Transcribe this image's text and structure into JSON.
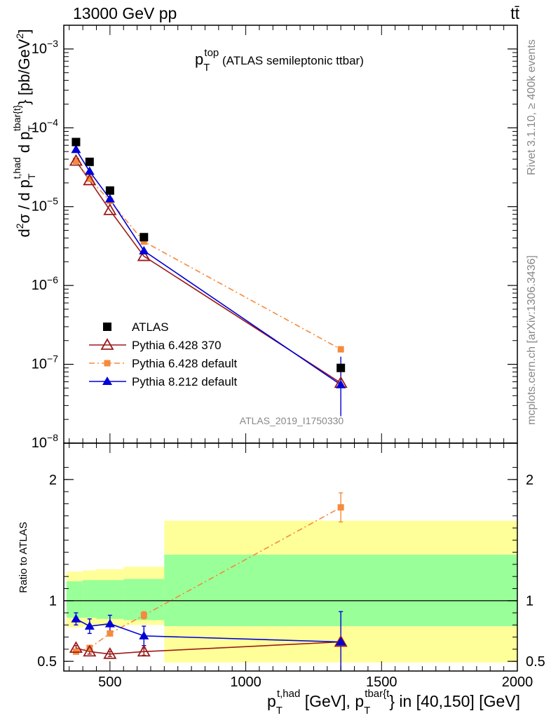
{
  "header": {
    "left": "13000 GeV pp",
    "right": "tt̄"
  },
  "side": {
    "rivet": "Rivet 3.1.10, ≥ 400k events",
    "mcplots": "mcplots.cern.ch [arXiv:1306.3436]"
  },
  "watermark": "ATLAS_2019_I1750330",
  "colors": {
    "data": "#000000",
    "py6_370": "#9b1b1b",
    "py6_default": "#f58a3c",
    "py8_default": "#0000d8",
    "band_inner": "#99ff99",
    "band_outer": "#ffff99"
  },
  "chart_data": [
    {
      "type": "scatter",
      "panel": "main",
      "title": {
        "p": "p",
        "sub": "T",
        "sup": "top",
        "rest": " (ATLAS semileptonic ttbar)"
      },
      "ylabel": {
        "d2": "d",
        "d2sup": "2",
        "sigma": "σ / d p",
        "sub1": "T",
        "sup1": "t,had",
        "mid": " d p",
        "sub2": "T",
        "sup2": "tbar{t}",
        "tail": "} [pb/GeV",
        "tailsup": "2",
        "close": "]"
      },
      "yscale": "log",
      "ylim": [
        1e-08,
        0.002
      ],
      "xlim": [
        330,
        2000
      ],
      "yticks": [
        {
          "v": 1e-08,
          "base": "10",
          "exp": "−8"
        },
        {
          "v": 1e-07,
          "base": "10",
          "exp": "−7"
        },
        {
          "v": 1e-06,
          "base": "10",
          "exp": "−6"
        },
        {
          "v": 1e-05,
          "base": "10",
          "exp": "−5"
        },
        {
          "v": 0.0001,
          "base": "10",
          "exp": "−4"
        },
        {
          "v": 0.001,
          "base": "10",
          "exp": "−3"
        }
      ],
      "legend_position": "lower-left",
      "legend": [
        {
          "key": "atlas",
          "label": "ATLAS"
        },
        {
          "key": "py6_370",
          "label": "Pythia 6.428 370"
        },
        {
          "key": "py6_default",
          "label": "Pythia 6.428 default"
        },
        {
          "key": "py8_default",
          "label": "Pythia 8.212 default"
        }
      ],
      "x": [
        375,
        425,
        500,
        625,
        1350
      ],
      "series": [
        {
          "key": "atlas",
          "name": "ATLAS",
          "values": [
            6.6e-05,
            3.7e-05,
            1.6e-05,
            4.1e-06,
            9e-08
          ]
        },
        {
          "key": "py6_370",
          "name": "Pythia 6.428 370",
          "values": [
            3.8e-05,
            2.15e-05,
            9e-06,
            2.35e-06,
            5.8e-08
          ]
        },
        {
          "key": "py6_default",
          "name": "Pythia 6.428 default",
          "values": [
            3.8e-05,
            2.25e-05,
            1.18e-05,
            3.6e-06,
            1.55e-07
          ]
        },
        {
          "key": "py8_default",
          "name": "Pythia 8.212 default",
          "values": [
            5.3e-05,
            2.8e-05,
            1.25e-05,
            2.75e-06,
            5.5e-08
          ],
          "err_lo": [
            0,
            0,
            0,
            0,
            3.3e-08
          ],
          "err_hi": [
            0,
            0,
            0,
            0,
            7e-08
          ]
        }
      ]
    },
    {
      "type": "scatter",
      "panel": "ratio",
      "ylabel": "Ratio to ATLAS",
      "xlabel": {
        "p": "p",
        "sub": "T",
        "sup": "t,had",
        "mid": " [GeV], p",
        "sub2": "T",
        "sup2": "tbar{t",
        "tail": "} in [40,150] [GeV]"
      },
      "ylim": [
        0.42,
        2.3
      ],
      "xlim": [
        330,
        2000
      ],
      "yticks": [
        {
          "v": 0.5,
          "label": "0.5"
        },
        {
          "v": 1,
          "label": "1"
        },
        {
          "v": 2,
          "label": "2"
        }
      ],
      "xticks": [
        {
          "v": 500,
          "label": "500"
        },
        {
          "v": 1000,
          "label": "1000"
        },
        {
          "v": 1500,
          "label": "1500"
        },
        {
          "v": 2000,
          "label": "2000"
        }
      ],
      "bands": [
        {
          "x0": 340,
          "x1": 400,
          "outer": [
            0.78,
            1.24
          ],
          "inner": [
            0.86,
            1.16
          ]
        },
        {
          "x0": 400,
          "x1": 450,
          "outer": [
            0.79,
            1.25
          ],
          "inner": [
            0.86,
            1.17
          ]
        },
        {
          "x0": 450,
          "x1": 550,
          "outer": [
            0.79,
            1.26
          ],
          "inner": [
            0.85,
            1.17
          ]
        },
        {
          "x0": 550,
          "x1": 700,
          "outer": [
            0.8,
            1.28
          ],
          "inner": [
            0.84,
            1.18
          ]
        },
        {
          "x0": 700,
          "x1": 2000,
          "outer": [
            0.49,
            1.66
          ],
          "inner": [
            0.79,
            1.38
          ]
        }
      ],
      "x": [
        375,
        425,
        500,
        625,
        1350
      ],
      "series": [
        {
          "key": "py6_370",
          "values": [
            0.61,
            0.58,
            0.56,
            0.58,
            0.66
          ],
          "err": [
            0.02,
            0.02,
            0.02,
            0.03,
            0.0
          ]
        },
        {
          "key": "py6_default",
          "values": [
            0.58,
            0.61,
            0.73,
            0.88,
            1.77
          ],
          "err": [
            0.02,
            0.02,
            0.02,
            0.03,
            0.12
          ]
        },
        {
          "key": "py8_default",
          "values": [
            0.85,
            0.79,
            0.81,
            0.71,
            0.66
          ],
          "err": [
            0.05,
            0.06,
            0.07,
            0.08,
            0.25
          ]
        }
      ]
    }
  ]
}
